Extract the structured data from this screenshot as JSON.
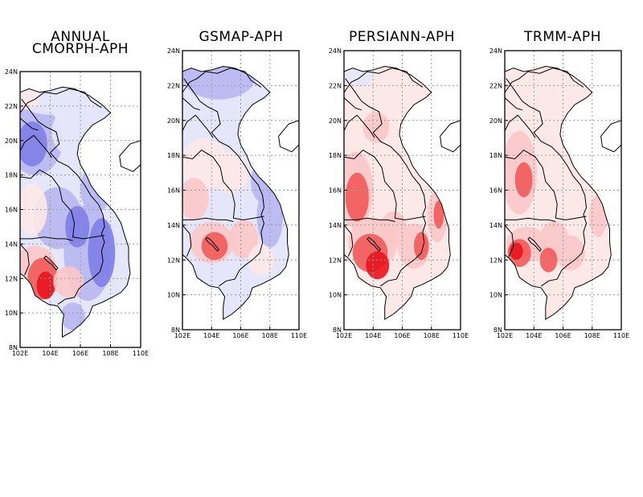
{
  "figure": {
    "panels": [
      {
        "id": "cmorph",
        "title_lines": [
          "ANNUAL",
          "CMORPH-APH"
        ],
        "xticks": [
          "102E",
          "104E",
          "106E",
          "108E",
          "110E"
        ],
        "yticks": [
          "8N",
          "10N",
          "12N",
          "14N",
          "16N",
          "18N",
          "20N",
          "22N",
          "24N"
        ]
      },
      {
        "id": "gsmap",
        "title_lines": [
          "GSMAP-APH"
        ],
        "xticks": [
          "102E",
          "104E",
          "106E",
          "108E",
          "110E"
        ],
        "yticks": [
          "8N",
          "10N",
          "12N",
          "14N",
          "16N",
          "18N",
          "20N",
          "22N",
          "24N"
        ]
      },
      {
        "id": "persiann",
        "title_lines": [
          "PERSIANN-APH"
        ],
        "xticks": [
          "102E",
          "104E",
          "106E",
          "108E",
          "110E"
        ],
        "yticks": [
          "8N",
          "10N",
          "12N",
          "14N",
          "16N",
          "18N",
          "20N",
          "22N",
          "24N"
        ]
      },
      {
        "id": "trmm",
        "title_lines": [
          "TRMM-APH"
        ],
        "xticks": [
          "102E",
          "104E",
          "106E",
          "108E",
          "110E"
        ],
        "yticks": [
          "8N",
          "10N",
          "12N",
          "14N",
          "16N",
          "18N",
          "20N",
          "22N",
          "24N"
        ]
      }
    ],
    "domain": {
      "lon_min": 102,
      "lon_max": 110,
      "lat_min": 8,
      "lat_max": 24
    },
    "colors": {
      "strong_red": "#e8141e",
      "red": "#f25a5a",
      "light_red": "#fbc8c8",
      "faint_red": "#fde8e8",
      "faint_blue": "#e6e6fb",
      "light_blue": "#b7b7f2",
      "blue": "#7d7de8",
      "strong_blue": "#4a4ad6"
    }
  }
}
